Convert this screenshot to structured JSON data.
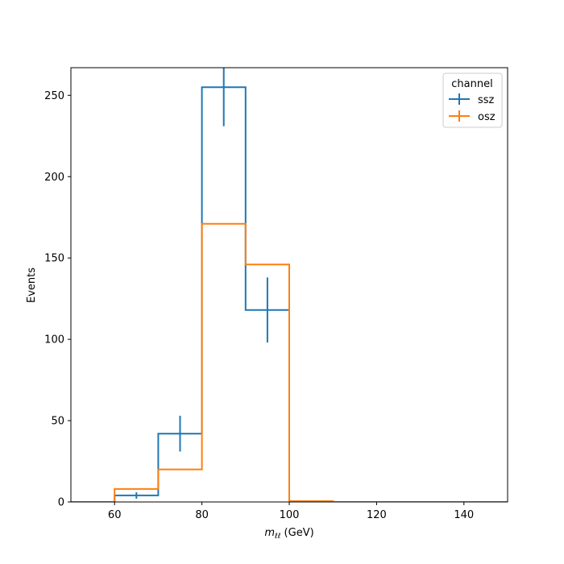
{
  "chart_data": {
    "type": "histogram",
    "xlabel_var": "m",
    "xlabel_sub": "ℓℓ",
    "xlabel_unit": " (GeV)",
    "ylabel": "Events",
    "xlim": [
      50,
      150
    ],
    "ylim": [
      0,
      267
    ],
    "xticks": [
      60,
      80,
      100,
      120,
      140
    ],
    "yticks": [
      0,
      50,
      100,
      150,
      200,
      250
    ],
    "bin_edges": [
      50,
      60,
      70,
      80,
      90,
      100,
      110,
      120,
      130,
      140,
      150
    ],
    "grid": false,
    "legend": {
      "title": "channel",
      "placement": "top-right"
    },
    "series": [
      {
        "name": "ssz",
        "color": "#1f77b4",
        "values": [
          0,
          4,
          42,
          255,
          118,
          0,
          0,
          0,
          0,
          0
        ],
        "errors": [
          0,
          2,
          11,
          24,
          20,
          0,
          0,
          0,
          0,
          0
        ]
      },
      {
        "name": "osz",
        "color": "#ff7f0e",
        "values": [
          0,
          8,
          20,
          171,
          146,
          0.5,
          0,
          0,
          0,
          0
        ],
        "errors": [
          0,
          0,
          0,
          0,
          0,
          0,
          0,
          0,
          0,
          0
        ]
      }
    ]
  }
}
